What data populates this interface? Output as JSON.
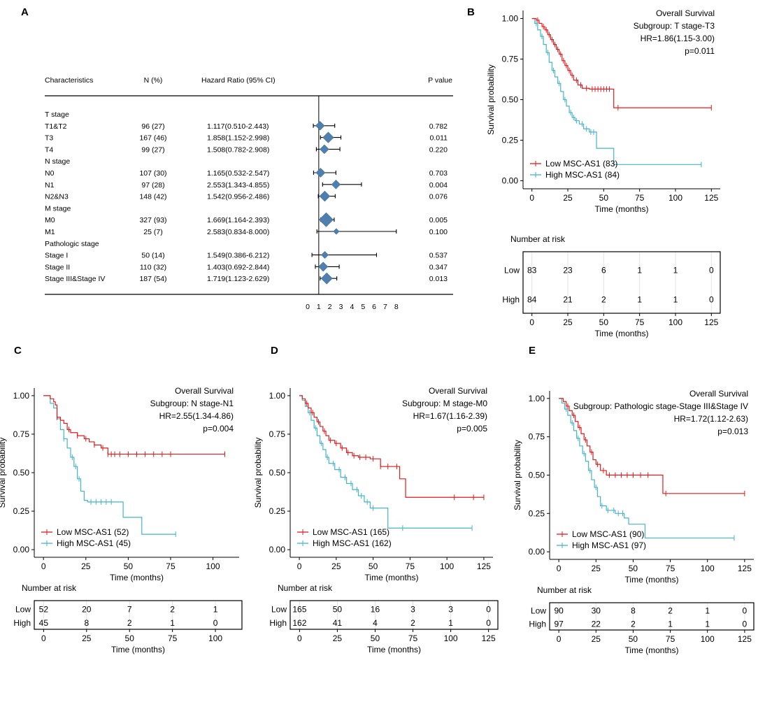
{
  "panel_letters": [
    "A",
    "B",
    "C",
    "D",
    "E"
  ],
  "colors": {
    "low": "#e41a1c",
    "high": "#45b5c7",
    "diamond": "#4f7fae"
  },
  "chart_data": [
    {
      "panel": "A",
      "type": "forest",
      "headers": {
        "char": "Characteristics",
        "n": "N (%)",
        "hr": "Hazard Ratio (95% CI)",
        "p": "P value"
      },
      "axis_ticks": [
        0,
        1,
        2,
        3,
        4,
        5,
        6,
        7,
        8
      ],
      "reference_line": 1,
      "rows": [
        {
          "label": "T stage",
          "group": true
        },
        {
          "label": "T1&T2",
          "n": "96 (27)",
          "hr_text": "1.117(0.510-2.443)",
          "hr": 1.117,
          "lo": 0.51,
          "hi": 2.443,
          "p": "0.782"
        },
        {
          "label": "T3",
          "n": "167 (46)",
          "hr_text": "1.858(1.152-2.998)",
          "hr": 1.858,
          "lo": 1.152,
          "hi": 2.998,
          "p": "0.011"
        },
        {
          "label": "T4",
          "n": "99 (27)",
          "hr_text": "1.508(0.782-2.908)",
          "hr": 1.508,
          "lo": 0.782,
          "hi": 2.908,
          "p": "0.220"
        },
        {
          "label": "N stage",
          "group": true
        },
        {
          "label": "N0",
          "n": "107 (30)",
          "hr_text": "1.165(0.532-2.547)",
          "hr": 1.165,
          "lo": 0.532,
          "hi": 2.547,
          "p": "0.703"
        },
        {
          "label": "N1",
          "n": "97 (28)",
          "hr_text": "2.553(1.343-4.855)",
          "hr": 2.553,
          "lo": 1.343,
          "hi": 4.855,
          "p": "0.004"
        },
        {
          "label": "N2&N3",
          "n": "148 (42)",
          "hr_text": "1.542(0.956-2.486)",
          "hr": 1.542,
          "lo": 0.956,
          "hi": 2.486,
          "p": "0.076"
        },
        {
          "label": "M stage",
          "group": true
        },
        {
          "label": "M0",
          "n": "327 (93)",
          "hr_text": "1.669(1.164-2.393)",
          "hr": 1.669,
          "lo": 1.164,
          "hi": 2.393,
          "p": "0.005"
        },
        {
          "label": "M1",
          "n": "25 (7)",
          "hr_text": "2.583(0.834-8.000)",
          "hr": 2.583,
          "lo": 0.834,
          "hi": 8.0,
          "p": "0.100"
        },
        {
          "label": "Pathologic stage",
          "group": true
        },
        {
          "label": "Stage I",
          "n": "50 (14)",
          "hr_text": "1.549(0.386-6.212)",
          "hr": 1.549,
          "lo": 0.386,
          "hi": 6.212,
          "p": "0.537"
        },
        {
          "label": "Stage II",
          "n": "110 (32)",
          "hr_text": "1.403(0.692-2.844)",
          "hr": 1.403,
          "lo": 0.692,
          "hi": 2.844,
          "p": "0.347"
        },
        {
          "label": "Stage III&Stage IV",
          "n": "187 (54)",
          "hr_text": "1.719(1.123-2.629)",
          "hr": 1.719,
          "lo": 1.123,
          "hi": 2.629,
          "p": "0.013"
        }
      ]
    },
    {
      "panel": "B",
      "type": "km",
      "xmax": 125,
      "xticks": [
        0,
        25,
        50,
        75,
        100,
        125
      ],
      "yticks": [
        "0.00",
        "0.25",
        "0.50",
        "0.75",
        "1.00"
      ],
      "xlabel": "Time (months)",
      "ylabel": "Survival probability",
      "annotation": [
        "Overall Survival",
        "Subgroup: T stage-T3",
        "HR=1.86(1.15-3.00)",
        "p=0.011"
      ],
      "legend": [
        "Low MSC-AS1 (83)",
        "High MSC-AS1 (84)"
      ],
      "low": [
        [
          0,
          1
        ],
        [
          3,
          0.99
        ],
        [
          5,
          0.97
        ],
        [
          7,
          0.95
        ],
        [
          9,
          0.93
        ],
        [
          11,
          0.9
        ],
        [
          13,
          0.87
        ],
        [
          15,
          0.84
        ],
        [
          17,
          0.81
        ],
        [
          19,
          0.78
        ],
        [
          21,
          0.74
        ],
        [
          23,
          0.71
        ],
        [
          25,
          0.68
        ],
        [
          27,
          0.65
        ],
        [
          29,
          0.62
        ],
        [
          32,
          0.59
        ],
        [
          35,
          0.57
        ],
        [
          40,
          0.565
        ],
        [
          57,
          0.565
        ],
        [
          57,
          0.45
        ],
        [
          125,
          0.45
        ]
      ],
      "high": [
        [
          0,
          1
        ],
        [
          2,
          0.97
        ],
        [
          4,
          0.93
        ],
        [
          6,
          0.89
        ],
        [
          8,
          0.84
        ],
        [
          10,
          0.79
        ],
        [
          12,
          0.73
        ],
        [
          14,
          0.68
        ],
        [
          16,
          0.64
        ],
        [
          18,
          0.6
        ],
        [
          20,
          0.55
        ],
        [
          22,
          0.5
        ],
        [
          24,
          0.46
        ],
        [
          26,
          0.42
        ],
        [
          28,
          0.39
        ],
        [
          30,
          0.37
        ],
        [
          33,
          0.35
        ],
        [
          36,
          0.32
        ],
        [
          40,
          0.3
        ],
        [
          45,
          0.3
        ],
        [
          45,
          0.2
        ],
        [
          57,
          0.2
        ],
        [
          57,
          0.1
        ],
        [
          118,
          0.1
        ]
      ],
      "low_censor": [
        4,
        8,
        10,
        12,
        14,
        16,
        18,
        20,
        22,
        24,
        26,
        28,
        31,
        34,
        38,
        42,
        44,
        46,
        48,
        50,
        52,
        54,
        60,
        125
      ],
      "high_censor": [
        3,
        7,
        11,
        15,
        19,
        23,
        27,
        29,
        31,
        35,
        38,
        41,
        43,
        118
      ],
      "risk_title": "Number at risk",
      "risk_rows": [
        {
          "name": "Low",
          "values": [
            "83",
            "23",
            "6",
            "1",
            "1",
            "0"
          ]
        },
        {
          "name": "High",
          "values": [
            "84",
            "21",
            "2",
            "1",
            "1",
            "0"
          ]
        }
      ]
    },
    {
      "panel": "C",
      "type": "km",
      "xmax": 110,
      "xticks": [
        0,
        25,
        50,
        75,
        100
      ],
      "yticks": [
        "0.00",
        "0.25",
        "0.50",
        "0.75",
        "1.00"
      ],
      "xlabel": "Time (months)",
      "ylabel": "Survival probability",
      "annotation": [
        "Overall Survival",
        "Subgroup: N stage-N1",
        "HR=2.55(1.34-4.86)",
        "p=0.004"
      ],
      "legend": [
        "Low MSC-AS1 (52)",
        "High MSC-AS1 (45)"
      ],
      "low": [
        [
          0,
          1
        ],
        [
          4,
          0.98
        ],
        [
          6,
          0.96
        ],
        [
          7,
          0.94
        ],
        [
          8,
          0.86
        ],
        [
          10,
          0.84
        ],
        [
          12,
          0.82
        ],
        [
          14,
          0.78
        ],
        [
          16,
          0.76
        ],
        [
          20,
          0.74
        ],
        [
          24,
          0.72
        ],
        [
          27,
          0.7
        ],
        [
          30,
          0.68
        ],
        [
          34,
          0.66
        ],
        [
          38,
          0.65
        ],
        [
          38,
          0.62
        ],
        [
          107,
          0.62
        ]
      ],
      "high": [
        [
          0,
          1
        ],
        [
          4,
          0.95
        ],
        [
          6,
          0.92
        ],
        [
          8,
          0.85
        ],
        [
          10,
          0.78
        ],
        [
          12,
          0.72
        ],
        [
          14,
          0.66
        ],
        [
          16,
          0.6
        ],
        [
          18,
          0.54
        ],
        [
          20,
          0.46
        ],
        [
          22,
          0.38
        ],
        [
          24,
          0.32
        ],
        [
          26,
          0.31
        ],
        [
          47,
          0.31
        ],
        [
          47,
          0.21
        ],
        [
          58,
          0.21
        ],
        [
          58,
          0.1
        ],
        [
          78,
          0.1
        ]
      ],
      "low_censor": [
        8,
        15,
        20,
        25,
        30,
        35,
        38,
        40,
        42,
        45,
        50,
        55,
        60,
        65,
        70,
        75,
        107
      ],
      "high_censor": [
        12,
        17,
        19,
        21,
        28,
        31,
        34,
        37,
        40,
        78
      ],
      "risk_title": "Number at risk",
      "risk_rows": [
        {
          "name": "Low",
          "values": [
            "52",
            "20",
            "7",
            "2",
            "1"
          ]
        },
        {
          "name": "High",
          "values": [
            "45",
            "8",
            "2",
            "1",
            "0"
          ]
        }
      ]
    },
    {
      "panel": "D",
      "type": "km",
      "xmax": 125,
      "xticks": [
        0,
        25,
        50,
        75,
        100,
        125
      ],
      "yticks": [
        "0.00",
        "0.25",
        "0.50",
        "0.75",
        "1.00"
      ],
      "xlabel": "Time (months)",
      "ylabel": "Survival probability",
      "annotation": [
        "Overall Survival",
        "Subgroup: M stage-M0",
        "HR=1.67(1.16-2.39)",
        "p=0.005"
      ],
      "legend": [
        "Low MSC-AS1 (165)",
        "High MSC-AS1 (162)"
      ],
      "low": [
        [
          0,
          1
        ],
        [
          2,
          0.98
        ],
        [
          4,
          0.95
        ],
        [
          6,
          0.92
        ],
        [
          8,
          0.89
        ],
        [
          10,
          0.86
        ],
        [
          12,
          0.83
        ],
        [
          14,
          0.8
        ],
        [
          16,
          0.77
        ],
        [
          18,
          0.74
        ],
        [
          20,
          0.71
        ],
        [
          24,
          0.69
        ],
        [
          28,
          0.66
        ],
        [
          32,
          0.63
        ],
        [
          36,
          0.61
        ],
        [
          40,
          0.6
        ],
        [
          48,
          0.59
        ],
        [
          55,
          0.54
        ],
        [
          68,
          0.54
        ],
        [
          68,
          0.46
        ],
        [
          72,
          0.46
        ],
        [
          72,
          0.34
        ],
        [
          125,
          0.34
        ]
      ],
      "high": [
        [
          0,
          1
        ],
        [
          2,
          0.97
        ],
        [
          4,
          0.93
        ],
        [
          6,
          0.89
        ],
        [
          8,
          0.84
        ],
        [
          10,
          0.79
        ],
        [
          12,
          0.74
        ],
        [
          14,
          0.69
        ],
        [
          16,
          0.65
        ],
        [
          18,
          0.6
        ],
        [
          20,
          0.56
        ],
        [
          24,
          0.52
        ],
        [
          28,
          0.47
        ],
        [
          32,
          0.43
        ],
        [
          36,
          0.39
        ],
        [
          40,
          0.35
        ],
        [
          44,
          0.31
        ],
        [
          48,
          0.27
        ],
        [
          56,
          0.27
        ],
        [
          60,
          0.14
        ],
        [
          117,
          0.14
        ]
      ],
      "low_censor": [
        5,
        9,
        13,
        17,
        21,
        25,
        29,
        33,
        37,
        41,
        45,
        50,
        55,
        60,
        66,
        105,
        118,
        125
      ],
      "high_censor": [
        7,
        11,
        15,
        19,
        23,
        27,
        31,
        35,
        39,
        42,
        46,
        50,
        70,
        117
      ],
      "risk_title": "Number at risk",
      "risk_rows": [
        {
          "name": "Low",
          "values": [
            "165",
            "50",
            "16",
            "3",
            "3",
            "0"
          ]
        },
        {
          "name": "High",
          "values": [
            "162",
            "41",
            "4",
            "2",
            "1",
            "0"
          ]
        }
      ]
    },
    {
      "panel": "E",
      "type": "km",
      "xmax": 125,
      "xticks": [
        0,
        25,
        50,
        75,
        100,
        125
      ],
      "yticks": [
        "0.00",
        "0.25",
        "0.50",
        "0.75",
        "1.00"
      ],
      "xlabel": "Time (months)",
      "ylabel": "Survival probability",
      "annotation": [
        "Overall Survival",
        "Subgroup: Pathologic stage-Stage III&Stage IV",
        "HR=1.72(1.12-2.63)",
        "p=0.013"
      ],
      "legend": [
        "Low MSC-AS1 (90)",
        "High MSC-AS1 (97)"
      ],
      "low": [
        [
          0,
          1
        ],
        [
          3,
          0.98
        ],
        [
          5,
          0.95
        ],
        [
          7,
          0.92
        ],
        [
          9,
          0.89
        ],
        [
          11,
          0.85
        ],
        [
          13,
          0.81
        ],
        [
          15,
          0.77
        ],
        [
          17,
          0.73
        ],
        [
          19,
          0.69
        ],
        [
          21,
          0.65
        ],
        [
          23,
          0.6
        ],
        [
          25,
          0.57
        ],
        [
          28,
          0.53
        ],
        [
          32,
          0.5
        ],
        [
          50,
          0.5
        ],
        [
          70,
          0.5
        ],
        [
          70,
          0.38
        ],
        [
          125,
          0.38
        ]
      ],
      "high": [
        [
          0,
          1
        ],
        [
          2,
          0.97
        ],
        [
          4,
          0.93
        ],
        [
          6,
          0.89
        ],
        [
          8,
          0.84
        ],
        [
          10,
          0.79
        ],
        [
          12,
          0.74
        ],
        [
          14,
          0.69
        ],
        [
          16,
          0.64
        ],
        [
          18,
          0.59
        ],
        [
          20,
          0.53
        ],
        [
          22,
          0.47
        ],
        [
          24,
          0.42
        ],
        [
          26,
          0.36
        ],
        [
          28,
          0.3
        ],
        [
          32,
          0.27
        ],
        [
          38,
          0.25
        ],
        [
          44,
          0.22
        ],
        [
          47,
          0.18
        ],
        [
          58,
          0.18
        ],
        [
          58,
          0.09
        ],
        [
          118,
          0.09
        ]
      ],
      "low_censor": [
        6,
        10,
        14,
        18,
        22,
        26,
        30,
        34,
        38,
        42,
        46,
        50,
        55,
        60,
        72,
        125
      ],
      "high_censor": [
        5,
        9,
        13,
        17,
        21,
        25,
        29,
        33,
        37,
        40,
        43,
        118
      ],
      "risk_title": "Number at risk",
      "risk_rows": [
        {
          "name": "Low",
          "values": [
            "90",
            "30",
            "8",
            "2",
            "1",
            "0"
          ]
        },
        {
          "name": "High",
          "values": [
            "97",
            "22",
            "2",
            "1",
            "1",
            "0"
          ]
        }
      ]
    }
  ]
}
